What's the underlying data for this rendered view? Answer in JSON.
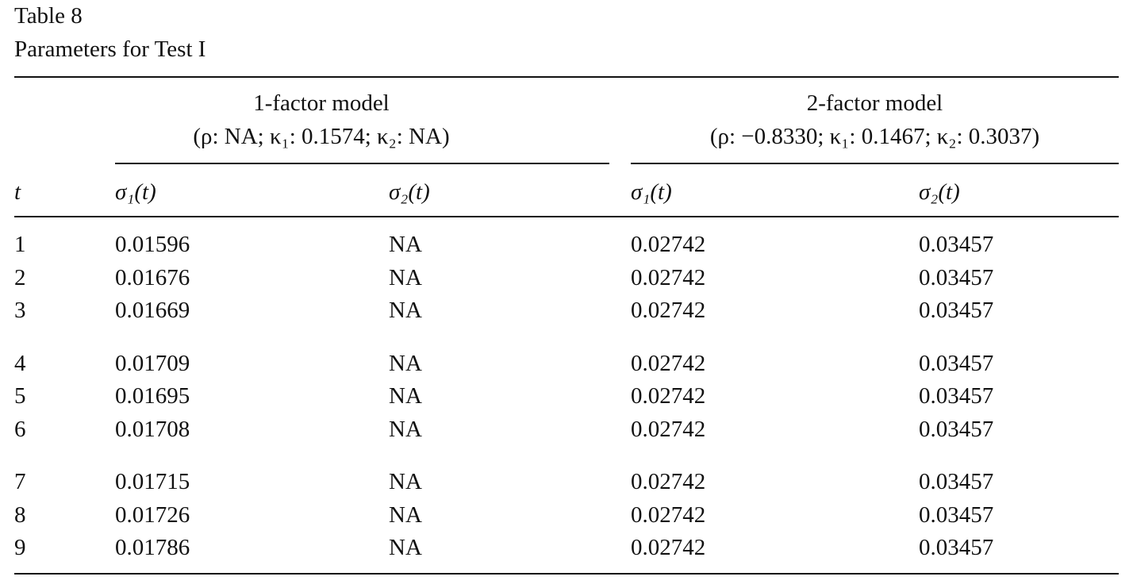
{
  "caption": {
    "label": "Table 8",
    "title": "Parameters for Test I"
  },
  "table": {
    "groups": [
      {
        "title": "1-factor model",
        "params": "(ρ: NA; κ₁: 0.1574; κ₂: NA)"
      },
      {
        "title": "2-factor model",
        "params": "(ρ: −0.8330; κ₁: 0.1467; κ₂: 0.3037)"
      }
    ],
    "columns": [
      "t",
      "σ₁(t)",
      "σ₂(t)",
      "σ₁(t)",
      "σ₂(t)"
    ],
    "rows": [
      [
        "1",
        "0.01596",
        "NA",
        "0.02742",
        "0.03457"
      ],
      [
        "2",
        "0.01676",
        "NA",
        "0.02742",
        "0.03457"
      ],
      [
        "3",
        "0.01669",
        "NA",
        "0.02742",
        "0.03457"
      ],
      [
        "4",
        "0.01709",
        "NA",
        "0.02742",
        "0.03457"
      ],
      [
        "5",
        "0.01695",
        "NA",
        "0.02742",
        "0.03457"
      ],
      [
        "6",
        "0.01708",
        "NA",
        "0.02742",
        "0.03457"
      ],
      [
        "7",
        "0.01715",
        "NA",
        "0.02742",
        "0.03457"
      ],
      [
        "8",
        "0.01726",
        "NA",
        "0.02742",
        "0.03457"
      ],
      [
        "9",
        "0.01786",
        "NA",
        "0.02742",
        "0.03457"
      ]
    ]
  }
}
